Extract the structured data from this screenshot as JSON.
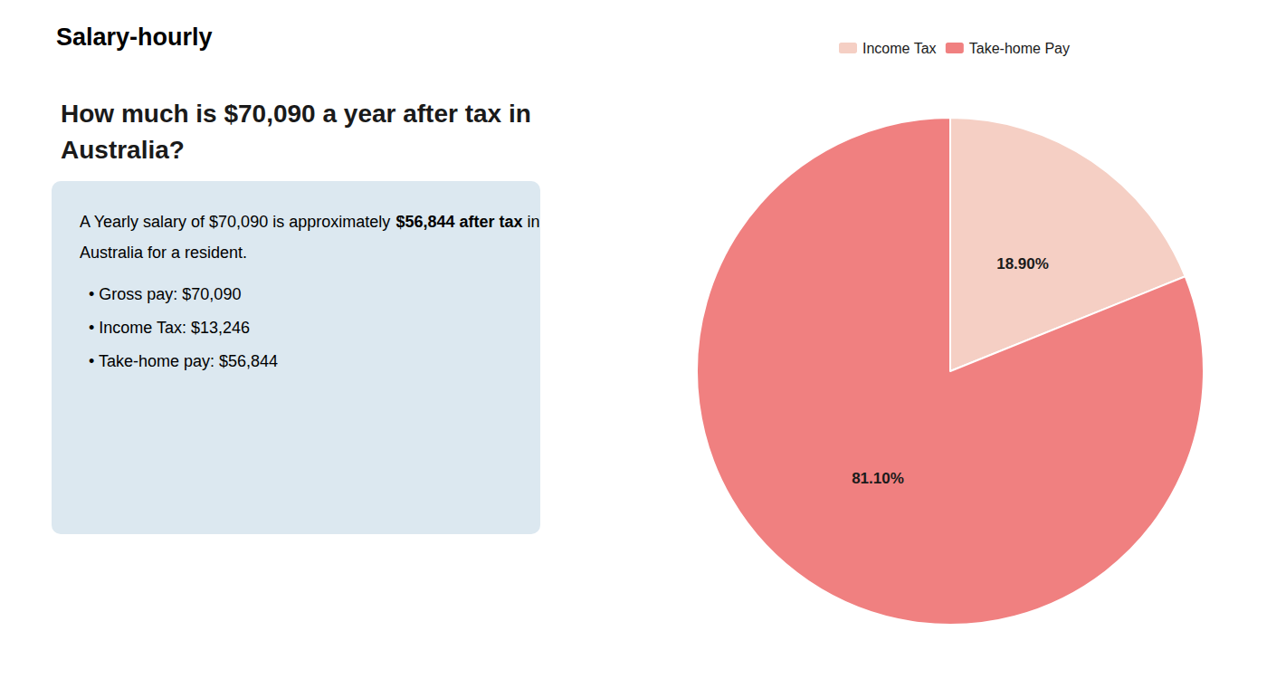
{
  "chart_data": {
    "type": "pie",
    "title": "How much is $70,090 a year after tax in\nAustralia?",
    "categories": [
      "Income Tax",
      "Take-home Pay"
    ],
    "values": [
      18.9,
      81.1
    ],
    "value_labels": [
      "18.90%",
      "81.10%"
    ],
    "colors": [
      "#f5cfc4",
      "#f08080"
    ],
    "data_labels": true,
    "legend": "top",
    "annotations": [
      [
        {
          "text": "S",
          "color": "#cc0000"
        },
        {
          "text": "alary-hourly"
        }
      ],
      [
        {
          "text": "A Yearly salary of $70,090 is approximately "
        },
        {
          "text": "$56,844 after tax",
          "color": "#cc0000"
        },
        {
          "text": " in"
        }
      ],
      [
        {
          "text": "Australia for a resident."
        }
      ],
      [
        {
          "text": "• Gross pay: $70,090"
        }
      ],
      [
        {
          "text": "• Income Tax: $13,246"
        }
      ],
      [
        {
          "text": "• Take-home pay: $56,844"
        }
      ]
    ]
  }
}
